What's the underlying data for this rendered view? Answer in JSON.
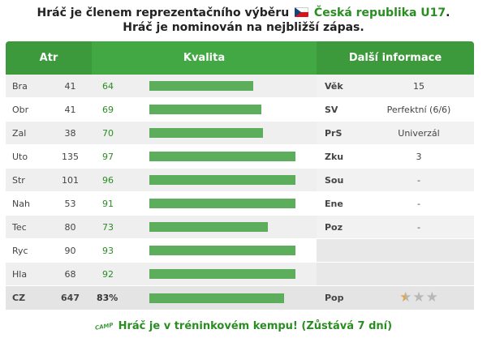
{
  "header": {
    "line1_prefix": "Hráč je členem reprezentačního výběru",
    "team_name": "Česká republika U17",
    "line1_suffix": ".",
    "line2": "Hráč je nominován na nejbližší zápas.",
    "flag_icon": "czech-flag-icon"
  },
  "table": {
    "headers": {
      "atr": "Atr",
      "kvalita": "Kvalita",
      "info": "Další informace"
    },
    "rows": [
      {
        "name": "Bra",
        "value": "41",
        "pct": "64",
        "bar": 64,
        "label": "Věk",
        "info": "15"
      },
      {
        "name": "Obr",
        "value": "41",
        "pct": "69",
        "bar": 69,
        "label": "SV",
        "info": "Perfektní (6/6)"
      },
      {
        "name": "Zal",
        "value": "38",
        "pct": "70",
        "bar": 70,
        "label": "PrS",
        "info": "Univerzál"
      },
      {
        "name": "Uto",
        "value": "135",
        "pct": "97",
        "bar": 97,
        "label": "Zku",
        "info": "3"
      },
      {
        "name": "Str",
        "value": "101",
        "pct": "96",
        "bar": 96,
        "label": "Sou",
        "info": "-"
      },
      {
        "name": "Nah",
        "value": "53",
        "pct": "91",
        "bar": 91,
        "label": "Ene",
        "info": "-"
      },
      {
        "name": "Tec",
        "value": "80",
        "pct": "73",
        "bar": 73,
        "label": "Poz",
        "info": "-"
      },
      {
        "name": "Ryc",
        "value": "90",
        "pct": "93",
        "bar": 93,
        "label": "",
        "info": ""
      },
      {
        "name": "Hla",
        "value": "68",
        "pct": "92",
        "bar": 92,
        "label": "",
        "info": ""
      }
    ],
    "total": {
      "name": "CZ",
      "value": "647",
      "pct": "83%",
      "bar": 83,
      "label": "Pop",
      "stars_filled": 0.5,
      "stars_total": 3
    }
  },
  "footer": {
    "camp_icon_text": "CAMP",
    "text": "Hráč je v tréninkovém kempu! (Zůstává 7 dní)"
  },
  "colors": {
    "accent": "#2a8d22",
    "header_bg": "#3c9a3c",
    "header_mid": "#42a843",
    "bar": "#5cae5c"
  }
}
